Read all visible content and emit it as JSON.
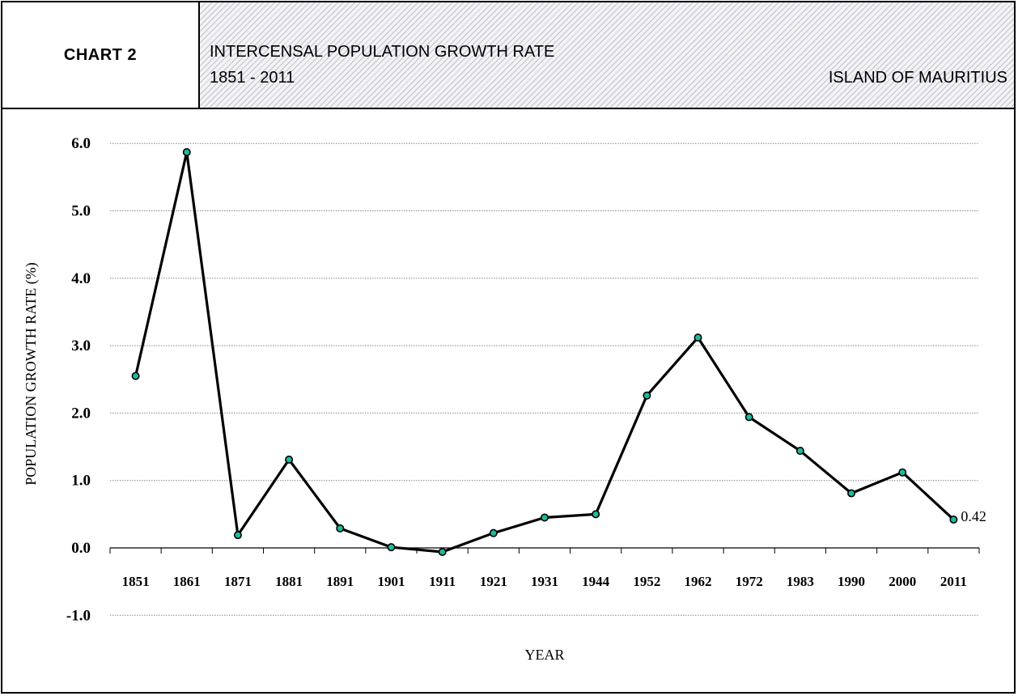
{
  "header": {
    "chart_number": "CHART  2",
    "title_line1": "INTERCENSAL POPULATION GROWTH RATE",
    "title_line2": "1851 - 2011",
    "region": "ISLAND  OF MAURITIUS"
  },
  "chart_data": {
    "type": "line",
    "categories": [
      "1851",
      "1861",
      "1871",
      "1881",
      "1891",
      "1901",
      "1911",
      "1921",
      "1931",
      "1944",
      "1952",
      "1962",
      "1972",
      "1983",
      "1990",
      "2000",
      "2011"
    ],
    "series": [
      {
        "values": [
          2.55,
          5.87,
          0.19,
          1.31,
          0.29,
          0.01,
          -0.06,
          0.22,
          0.45,
          0.5,
          2.26,
          3.12,
          1.94,
          1.44,
          0.81,
          1.12,
          0.42
        ],
        "color": "#000000",
        "marker_color": "#1abc9c"
      }
    ],
    "data_labels": [
      {
        "category": "2011",
        "text": "0.42"
      }
    ],
    "xlabel": "YEAR",
    "ylabel": "POPULATION GROWTH RATE (%)",
    "ylim": [
      -1.0,
      6.0
    ],
    "yticks": [
      "6.0",
      "5.0",
      "4.0",
      "3.0",
      "2.0",
      "1.0",
      "0.0",
      "-1.0"
    ],
    "grid": true
  }
}
